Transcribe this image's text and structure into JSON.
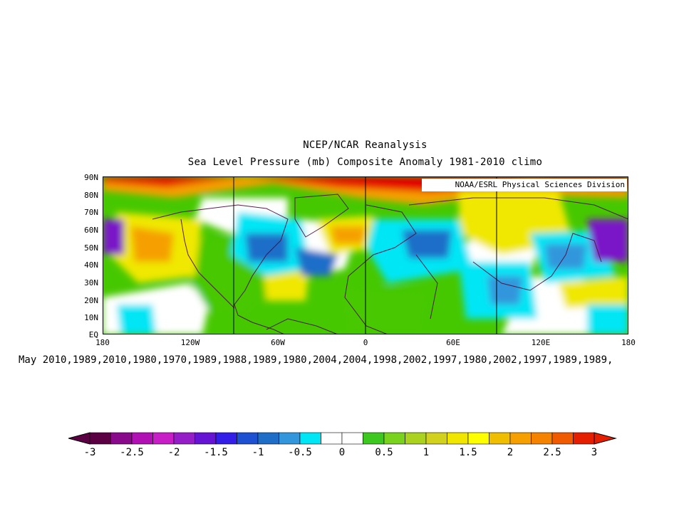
{
  "map": {
    "title_line1": "NCEP/NCAR Reanalysis",
    "title_line2": "Sea Level Pressure (mb) Composite Anomaly 1981-2010 climo",
    "credit": "NOAA/ESRL Physical Sciences Division",
    "subtitle": "May 2010,1989,2010,1980,1970,1989,1988,1989,1980,2004,2004,1998,2002,1997,1980,2002,1997,1989,1989,",
    "lat_labels": [
      "90N",
      "80N",
      "70N",
      "60N",
      "50N",
      "40N",
      "30N",
      "20N",
      "10N",
      "EQ"
    ],
    "lon_labels": [
      "180",
      "120W",
      "60W",
      "0",
      "60E",
      "120E",
      "180"
    ],
    "colors": {
      "strong_positive": "#e60000",
      "positive_orange": "#f5a000",
      "positive_yellow": "#f0e800",
      "weak_positive_green": "#46c800",
      "neutral": "#ffffff",
      "weak_negative_cyan": "#00e6f5",
      "negative_blue": "#1e6ec8",
      "strong_negative_purple": "#7a14c8",
      "coastline": "#4b0a3c"
    }
  },
  "colorbar": {
    "labels": [
      "-3",
      "-2.5",
      "-2",
      "-1.5",
      "-1",
      "-0.5",
      "0",
      "0.5",
      "1",
      "1.5",
      "2",
      "2.5",
      "3"
    ],
    "colors": [
      "#5c0044",
      "#8a0a8c",
      "#b010b4",
      "#c81ec8",
      "#961ec8",
      "#6414d2",
      "#321ee6",
      "#1e50d2",
      "#1e6ec8",
      "#3296dc",
      "#00e6f5",
      "#ffffff",
      "#ffffff",
      "#3cc81e",
      "#78d21e",
      "#aad21e",
      "#d2d21e",
      "#f0e600",
      "#ffff00",
      "#f0be00",
      "#f5a000",
      "#f58200",
      "#f05a00",
      "#e61e00"
    ]
  }
}
